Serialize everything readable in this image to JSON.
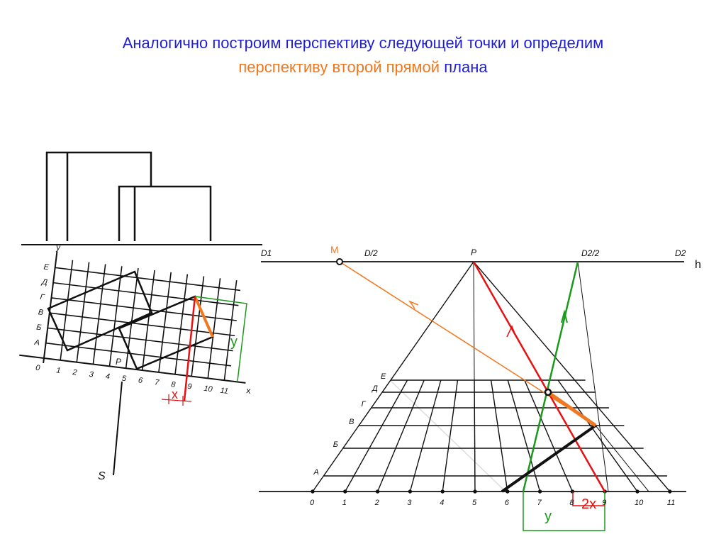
{
  "title": {
    "line1": "Аналогично построим перспективу следующей точки и определим",
    "line2_orange": "перспективу второй прямой",
    "line2_blue": "плана"
  },
  "colors": {
    "title": "#1f1fd1",
    "accent": "#f07820",
    "red": "#e81010",
    "green": "#1a9a1a",
    "ink": "#111111"
  },
  "plan": {
    "x_ticks": [
      "0",
      "1",
      "2",
      "3",
      "4",
      "5",
      "6",
      "7",
      "8",
      "9",
      "10",
      "11"
    ],
    "rows": [
      "А",
      "Б",
      "В",
      "Г",
      "Д",
      "Е"
    ],
    "axis_x": "x",
    "axis_y": "y",
    "p_label": "P",
    "dim_x": "x",
    "dim_y": "y",
    "s_label": "S"
  },
  "perspective": {
    "d1": "D1",
    "m": "M",
    "d_half": "D/2",
    "p": "P",
    "d2_half": "D2/2",
    "d2": "D2",
    "h": "h",
    "ticks": [
      "0",
      "1",
      "2",
      "3",
      "4",
      "5",
      "6",
      "7",
      "8",
      "9",
      "10",
      "11"
    ],
    "rows": [
      "А",
      "Б",
      "В",
      "Г",
      "Д",
      "Е"
    ],
    "dim_2x": "2x",
    "dim_y": "y"
  }
}
